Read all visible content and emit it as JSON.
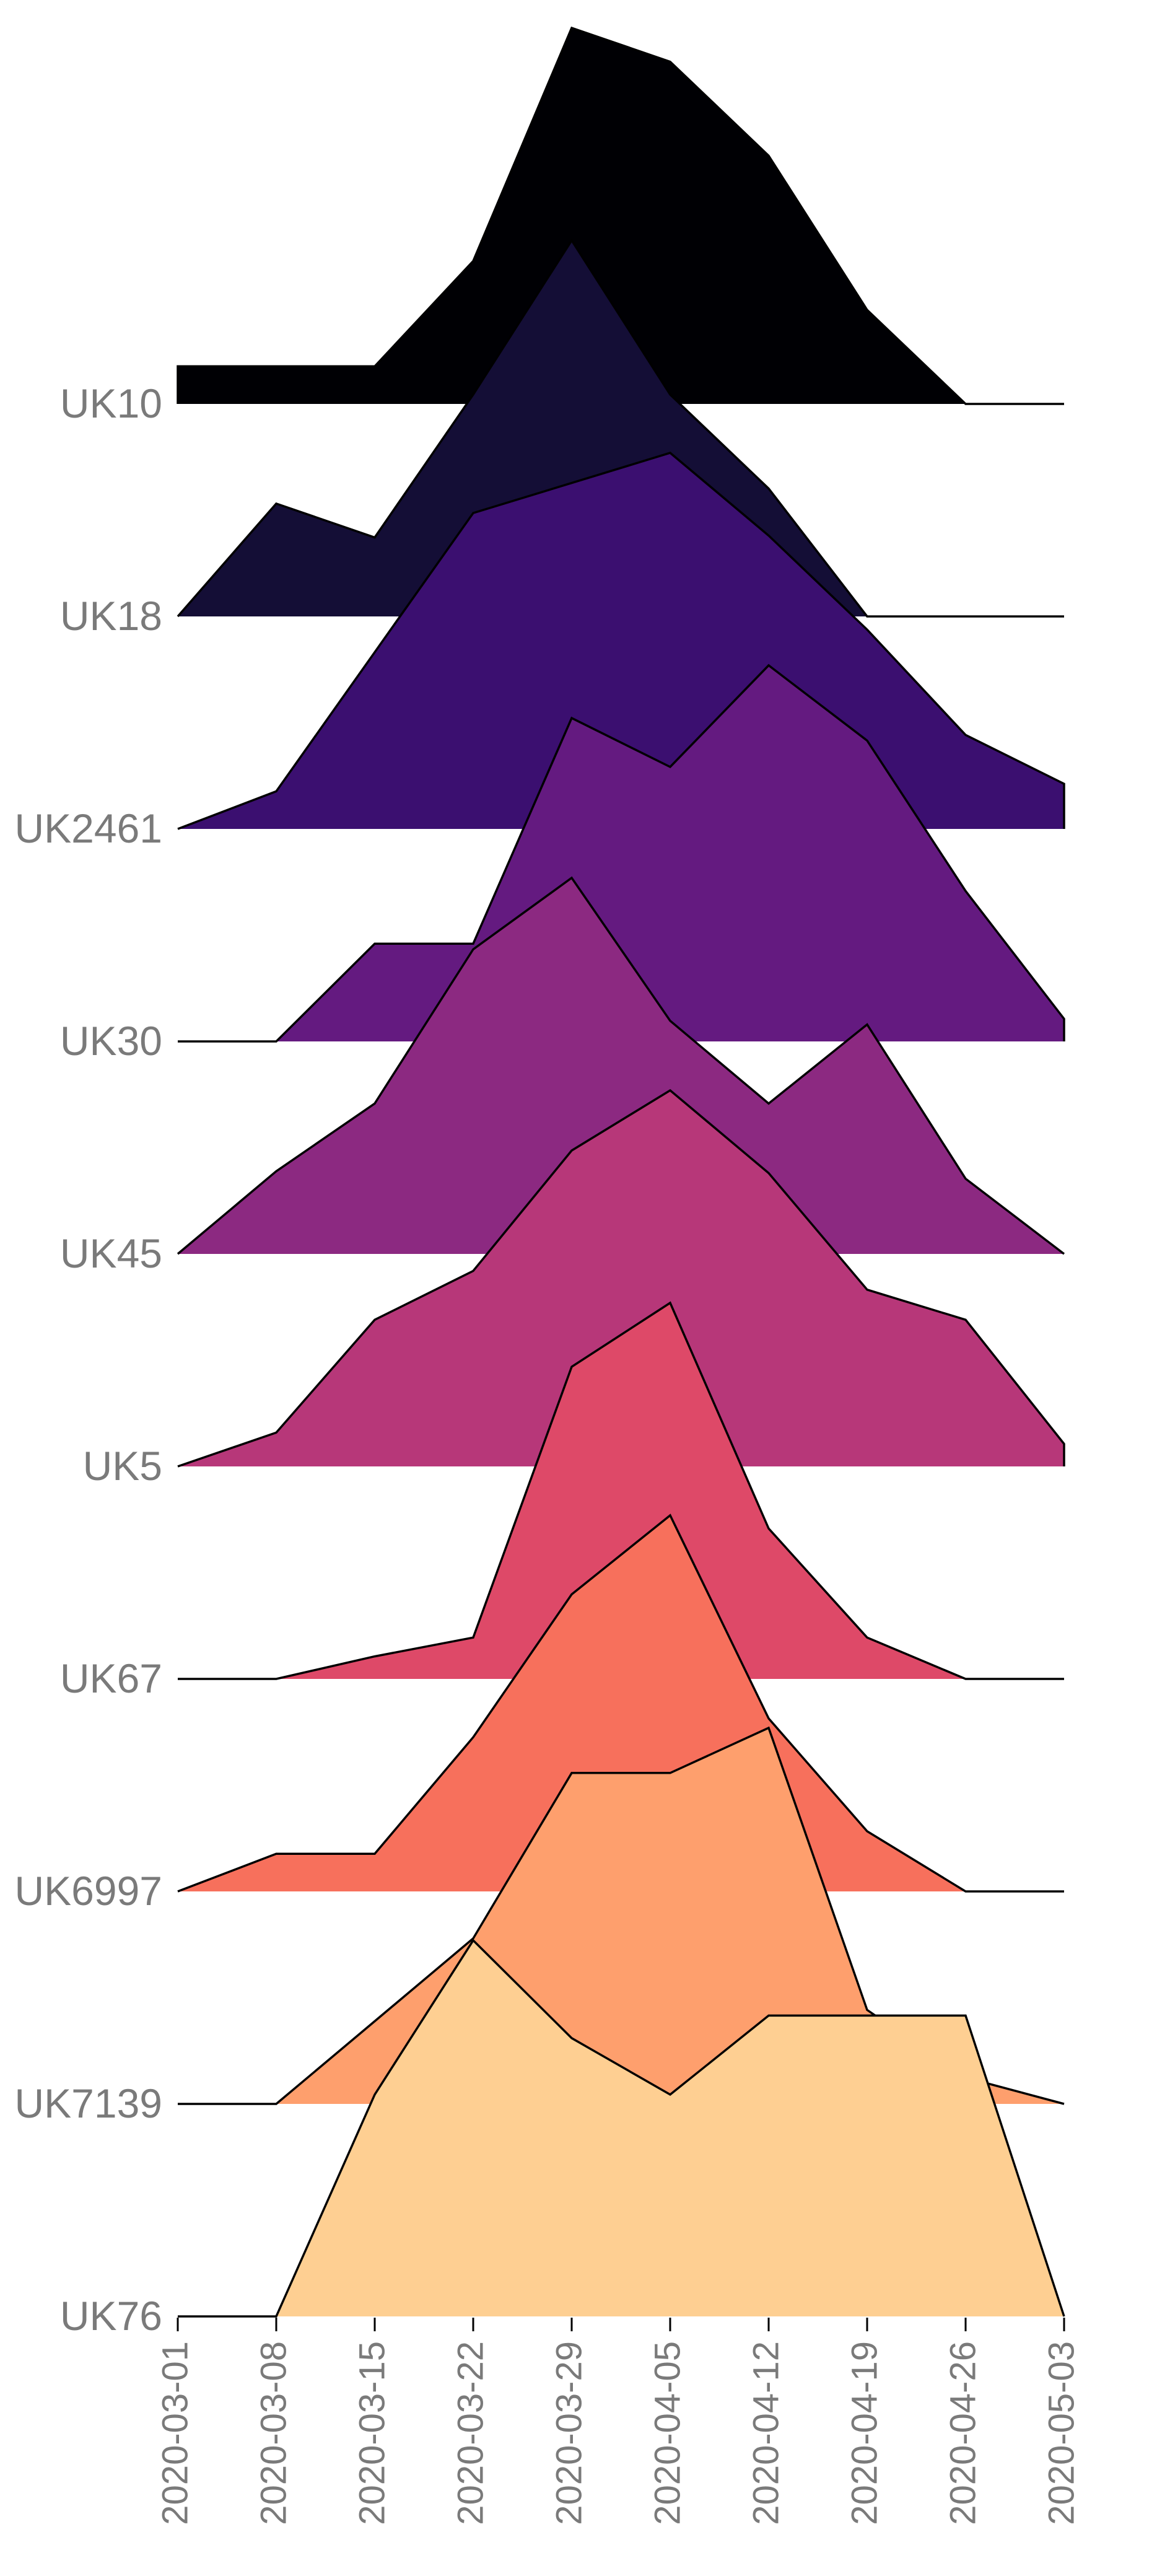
{
  "chart_data": {
    "type": "area",
    "style": "ridgeline",
    "x": [
      "2020-03-01",
      "2020-03-08",
      "2020-03-15",
      "2020-03-22",
      "2020-03-29",
      "2020-04-05",
      "2020-04-12",
      "2020-04-19",
      "2020-04-26",
      "2020-05-03"
    ],
    "xlabel": "",
    "ylabel": "",
    "grid": false,
    "legend": "none",
    "series": [
      {
        "name": "UK10",
        "color": "#000004",
        "values": [
          0.1,
          0.1,
          0.1,
          0.38,
          1.0,
          0.91,
          0.66,
          0.25,
          0.0,
          0.0
        ]
      },
      {
        "name": "UK18",
        "color": "#140E36",
        "values": [
          0.0,
          0.3,
          0.21,
          0.59,
          1.0,
          0.59,
          0.34,
          0.0,
          0.0,
          0.0
        ]
      },
      {
        "name": "UK2461",
        "color": "#3B0F70",
        "values": [
          0.0,
          0.1,
          0.47,
          0.84,
          0.92,
          1.0,
          0.78,
          0.53,
          0.25,
          0.12
        ]
      },
      {
        "name": "UK30",
        "color": "#641A80",
        "values": [
          0.0,
          0.0,
          0.26,
          0.26,
          0.86,
          0.73,
          1.0,
          0.8,
          0.4,
          0.06
        ]
      },
      {
        "name": "UK45",
        "color": "#8C2981",
        "values": [
          0.0,
          0.22,
          0.4,
          0.81,
          1.0,
          0.62,
          0.4,
          0.61,
          0.2,
          0.0
        ]
      },
      {
        "name": "UK5",
        "color": "#B73779",
        "values": [
          0.0,
          0.09,
          0.39,
          0.52,
          0.84,
          1.0,
          0.78,
          0.47,
          0.39,
          0.06
        ]
      },
      {
        "name": "UK67",
        "color": "#DE4968",
        "values": [
          0.0,
          0.0,
          0.06,
          0.11,
          0.83,
          1.0,
          0.4,
          0.11,
          0.0,
          0.0
        ]
      },
      {
        "name": "UK6997",
        "color": "#F7705C",
        "values": [
          0.0,
          0.1,
          0.1,
          0.41,
          0.79,
          1.0,
          0.46,
          0.16,
          0.0,
          0.0
        ]
      },
      {
        "name": "UK7139",
        "color": "#FE9F6D",
        "values": [
          0.0,
          0.0,
          0.22,
          0.44,
          0.88,
          0.88,
          1.0,
          0.25,
          0.07,
          0.0
        ]
      },
      {
        "name": "UK76",
        "color": "#FECF92",
        "values": [
          0.0,
          0.0,
          0.59,
          1.0,
          0.74,
          0.59,
          0.8,
          0.8,
          0.8,
          0.0
        ]
      }
    ]
  }
}
